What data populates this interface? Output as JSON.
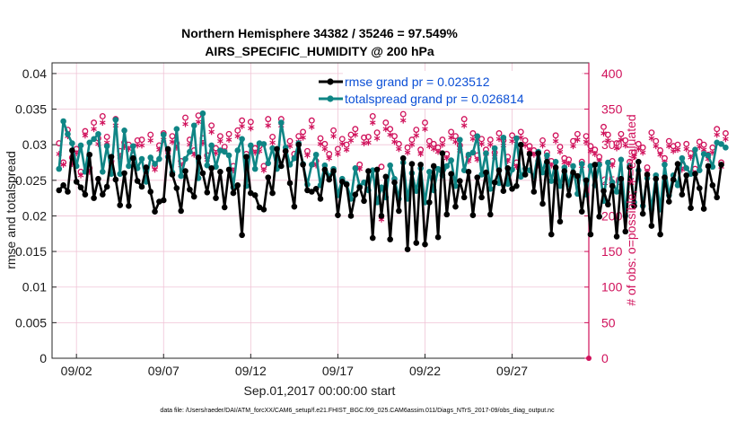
{
  "chart_data": {
    "type": "line",
    "title_line1": "Northern Hemisphere 34382 / 35246 = 97.549%",
    "title_line2": "AIRS_SPECIFIC_HUMIDITY @ 200 hPa",
    "xlabel": "Sep.01,2017 00:00:00 start",
    "ylabel_left": "rmse and totalspread",
    "ylabel_right": "# of obs: o=possible; ∗=evaluated",
    "footer": "data file: /Users/raeder/DAI/ATM_forcXX/CAM6_setup/f.e21.FHIST_BGC.f09_025.CAM6assim.011/Diags_NTrS_2017-09/obs_diag_output.nc",
    "x_ticks": [
      "09/02",
      "09/07",
      "09/12",
      "09/17",
      "09/22",
      "09/27"
    ],
    "x_tick_days": [
      2,
      7,
      12,
      17,
      22,
      27
    ],
    "xlim": [
      0.6,
      31.4
    ],
    "y_left_ticks": [
      "0",
      "0.005",
      "0.01",
      "0.015",
      "0.02",
      "0.025",
      "0.03",
      "0.035",
      "0.04"
    ],
    "y_left_lim": [
      0,
      0.0415
    ],
    "y_right_ticks": [
      "0",
      "50",
      "100",
      "150",
      "200",
      "250",
      "300",
      "350",
      "400"
    ],
    "y_right_lim": [
      0,
      415
    ],
    "time_step_days": 0.25,
    "start_day": 1.0,
    "colors": {
      "rmse": "#000000",
      "spread": "#0f8585",
      "obs": "#d0115b",
      "grid": "#f0c4d6"
    },
    "series": [
      {
        "name": "rmse grand pr = 0.023512",
        "axis": "left",
        "values": [
          0.0236,
          0.0243,
          0.0234,
          0.0292,
          0.0248,
          0.024,
          0.023,
          0.0286,
          0.0225,
          0.0252,
          0.023,
          0.0241,
          0.0283,
          0.0251,
          0.0215,
          0.026,
          0.0214,
          0.0281,
          0.0249,
          0.0241,
          0.0268,
          0.0234,
          0.0206,
          0.022,
          0.0222,
          0.0294,
          0.0258,
          0.0239,
          0.0207,
          0.0263,
          0.0237,
          0.0227,
          0.0282,
          0.026,
          0.0233,
          0.0267,
          0.0225,
          0.0262,
          0.0212,
          0.0265,
          0.0232,
          0.0243,
          0.0173,
          0.0283,
          0.0232,
          0.0229,
          0.0212,
          0.0209,
          0.0254,
          0.0232,
          0.0294,
          0.027,
          0.0291,
          0.0246,
          0.0213,
          0.03,
          0.0272,
          0.0236,
          0.0234,
          0.0238,
          0.0224,
          0.0265,
          0.0251,
          0.0263,
          0.0201,
          0.0248,
          0.0244,
          0.02,
          0.023,
          0.024,
          0.0221,
          0.0263,
          0.0169,
          0.0265,
          0.02,
          0.0255,
          0.0167,
          0.0247,
          0.0207,
          0.0281,
          0.0153,
          0.0273,
          0.0162,
          0.0272,
          0.016,
          0.0219,
          0.027,
          0.017,
          0.0288,
          0.0202,
          0.0259,
          0.0213,
          0.0249,
          0.0226,
          0.0262,
          0.0201,
          0.0254,
          0.0226,
          0.0261,
          0.0202,
          0.0247,
          0.0264,
          0.0235,
          0.0267,
          0.0238,
          0.0242,
          0.03,
          0.0258,
          0.0287,
          0.0234,
          0.0288,
          0.0217,
          0.0276,
          0.0174,
          0.0268,
          0.0192,
          0.0263,
          0.0229,
          0.0261,
          0.0256,
          0.0206,
          0.025,
          0.0174,
          0.0272,
          0.0199,
          0.0235,
          0.0216,
          0.0242,
          0.0171,
          0.0252,
          0.0178,
          0.0268,
          0.0214,
          0.0276,
          0.0203,
          0.0258,
          0.0186,
          0.0252,
          0.0174,
          0.0254,
          0.022,
          0.0251,
          0.0273,
          0.023,
          0.0257,
          0.0211,
          0.0259,
          0.0239,
          0.021,
          0.027,
          0.0243,
          0.0226,
          0.0272
        ]
      },
      {
        "name": "totalspread grand pr = 0.026814",
        "axis": "left",
        "values": [
          0.0266,
          0.0333,
          0.0315,
          0.0302,
          0.027,
          0.0299,
          0.0262,
          0.0303,
          0.0308,
          0.0315,
          0.0262,
          0.0298,
          0.0259,
          0.0335,
          0.0259,
          0.032,
          0.027,
          0.0298,
          0.0267,
          0.028,
          0.0248,
          0.0282,
          0.0273,
          0.028,
          0.0314,
          0.0283,
          0.0261,
          0.0322,
          0.0256,
          0.028,
          0.029,
          0.0327,
          0.0253,
          0.0344,
          0.0271,
          0.0299,
          0.0269,
          0.0292,
          0.029,
          0.0285,
          0.024,
          0.0292,
          0.0308,
          0.0242,
          0.0299,
          0.0266,
          0.0302,
          0.0301,
          0.0274,
          0.0295,
          0.0266,
          0.0331,
          0.0296,
          0.0272,
          0.0281,
          0.0302,
          0.0273,
          0.0244,
          0.0272,
          0.0286,
          0.0243,
          0.0271,
          0.0255,
          0.0266,
          0.0229,
          0.0252,
          0.0245,
          0.0224,
          0.0267,
          0.0242,
          0.0247,
          0.0236,
          0.0264,
          0.0219,
          0.024,
          0.0226,
          0.0271,
          0.0252,
          0.0224,
          0.0275,
          0.0224,
          0.026,
          0.0235,
          0.0267,
          0.0219,
          0.0262,
          0.0236,
          0.0266,
          0.0257,
          0.027,
          0.0278,
          0.0242,
          0.0307,
          0.0264,
          0.0286,
          0.0289,
          0.0312,
          0.0258,
          0.0288,
          0.0238,
          0.0295,
          0.0246,
          0.031,
          0.0245,
          0.0265,
          0.0309,
          0.0255,
          0.0266,
          0.0264,
          0.0255,
          0.029,
          0.0261,
          0.0285,
          0.0249,
          0.0276,
          0.0242,
          0.0268,
          0.0244,
          0.027,
          0.0231,
          0.0273,
          0.023,
          0.027,
          0.0243,
          0.0272,
          0.0221,
          0.0275,
          0.0247,
          0.0234,
          0.0279,
          0.02,
          0.0271,
          0.0219,
          0.0264,
          0.0214,
          0.0253,
          0.021,
          0.0257,
          0.0209,
          0.0272,
          0.0229,
          0.0257,
          0.0243,
          0.0281,
          0.0267,
          0.0259,
          0.0293,
          0.0264,
          0.0287,
          0.0285,
          0.0269,
          0.0303,
          0.0301,
          0.0296
        ]
      },
      {
        "name": "obs possible",
        "axis": "right",
        "marker": "o",
        "values": [
          302,
          275,
          321,
          282,
          294,
          262,
          319,
          267,
          331,
          309,
          340,
          311,
          277,
          336,
          291,
          303,
          300,
          285,
          306,
          307,
          268,
          314,
          270,
          299,
          316,
          292,
          312,
          302,
          277,
          338,
          307,
          292,
          341,
          309,
          285,
          327,
          295,
          312,
          297,
          315,
          270,
          320,
          334,
          287,
          332,
          295,
          298,
          270,
          336,
          311,
          282,
          336,
          291,
          305,
          287,
          312,
          318,
          291,
          334,
          277,
          309,
          301,
          287,
          320,
          294,
          308,
          300,
          314,
          322,
          272,
          310,
          311,
          340,
          317,
          269,
          331,
          322,
          312,
          301,
          343,
          296,
          307,
          321,
          293,
          331,
          305,
          301,
          296,
          307,
          287,
          318,
          312,
          299,
          336,
          283,
          316,
          285,
          308,
          293,
          307,
          289,
          316,
          306,
          283,
          313,
          275,
          318,
          306,
          298,
          292,
          277,
          306,
          289,
          277,
          313,
          297,
          281,
          279,
          305,
          315,
          276,
          312,
          298,
          293,
          283,
          325,
          314,
          277,
          302,
          315,
          306,
          276,
          289,
          301,
          296,
          268,
          317,
          305,
          292,
          281,
          305,
          298,
          300,
          271,
          301,
          288,
          266,
          304,
          300,
          286,
          296,
          322,
          275,
          316
        ]
      },
      {
        "name": "obs evaluated",
        "axis": "right",
        "marker": "*",
        "values": [
          287,
          272,
          312,
          273,
          288,
          257,
          313,
          262,
          322,
          301,
          331,
          303,
          272,
          327,
          283,
          297,
          294,
          280,
          299,
          299,
          263,
          306,
          265,
          293,
          307,
          286,
          304,
          296,
          271,
          329,
          300,
          286,
          332,
          302,
          279,
          318,
          288,
          305,
          291,
          307,
          264,
          312,
          326,
          281,
          323,
          289,
          291,
          264,
          327,
          303,
          276,
          327,
          284,
          298,
          281,
          304,
          310,
          285,
          325,
          271,
          301,
          294,
          281,
          312,
          287,
          301,
          293,
          306,
          314,
          266,
          302,
          303,
          331,
          309,
          195,
          322,
          314,
          304,
          294,
          334,
          289,
          300,
          313,
          287,
          322,
          298,
          294,
          290,
          300,
          281,
          310,
          304,
          292,
          327,
          277,
          308,
          279,
          301,
          287,
          300,
          283,
          308,
          299,
          277,
          305,
          269,
          310,
          299,
          292,
          286,
          271,
          299,
          283,
          271,
          305,
          290,
          275,
          273,
          298,
          307,
          270,
          304,
          291,
          287,
          277,
          316,
          306,
          271,
          295,
          307,
          299,
          270,
          283,
          294,
          289,
          262,
          309,
          298,
          286,
          275,
          298,
          291,
          293,
          265,
          294,
          282,
          260,
          297,
          293,
          280,
          289,
          314,
          269,
          308
        ]
      }
    ]
  }
}
